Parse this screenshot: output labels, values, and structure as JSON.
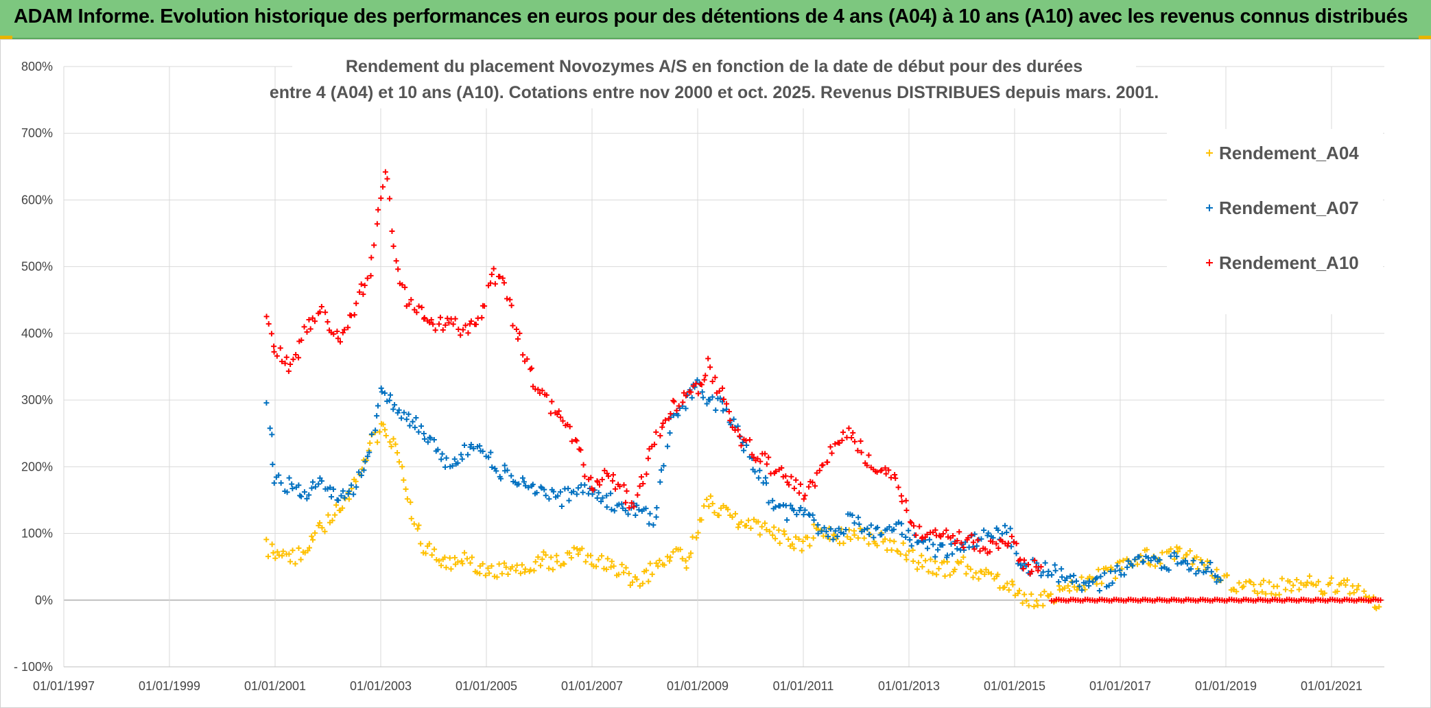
{
  "banner": {
    "title": "ADAM Informe. Evolution historique des performances en euros pour des détentions de 4 ans (A04) à 10 ans (A10) avec les revenus connus distribués"
  },
  "colors": {
    "banner_bg": "#7dc77f",
    "a04": "#ffc000",
    "a07": "#0070c0",
    "a10": "#ff0000",
    "grid": "#d9d9d9"
  },
  "chart_data": {
    "type": "scatter",
    "title_line1": "Rendement du placement Novozymes A/S en fonction de la date de début pour des durées",
    "title_line2": "entre 4 (A04) et 10 ans (A10). Cotations entre nov 2000 et oct. 2025. Revenus DISTRIBUES depuis mars. 2001.",
    "xlim": [
      1997.0,
      2022.0
    ],
    "ylim": [
      -100,
      800
    ],
    "y_ticks": [
      {
        "value": 800,
        "label": "800%"
      },
      {
        "value": 700,
        "label": "700%"
      },
      {
        "value": 600,
        "label": "600%"
      },
      {
        "value": 500,
        "label": "500%"
      },
      {
        "value": 400,
        "label": "400%"
      },
      {
        "value": 300,
        "label": "300%"
      },
      {
        "value": 200,
        "label": "200%"
      },
      {
        "value": 100,
        "label": "100%"
      },
      {
        "value": 0,
        "label": "0%"
      },
      {
        "value": -100,
        "label": "- 100%"
      }
    ],
    "x_ticks": [
      {
        "value": 1997,
        "label": "01/01/1997"
      },
      {
        "value": 1999,
        "label": "01/01/1999"
      },
      {
        "value": 2001,
        "label": "01/01/2001"
      },
      {
        "value": 2003,
        "label": "01/01/2003"
      },
      {
        "value": 2005,
        "label": "01/01/2005"
      },
      {
        "value": 2007,
        "label": "01/01/2007"
      },
      {
        "value": 2009,
        "label": "01/01/2009"
      },
      {
        "value": 2011,
        "label": "01/01/2011"
      },
      {
        "value": 2013,
        "label": "01/01/2013"
      },
      {
        "value": 2015,
        "label": "01/01/2015"
      },
      {
        "value": 2017,
        "label": "01/01/2017"
      },
      {
        "value": 2019,
        "label": "01/01/2019"
      },
      {
        "value": 2021,
        "label": "01/01/2021"
      }
    ],
    "legend_position": "top-right",
    "series": [
      {
        "name": "Rendement_A04",
        "color": "#ffc000",
        "x": [
          2000.85,
          2001.0,
          2001.3,
          2001.6,
          2001.9,
          2002.2,
          2002.5,
          2002.8,
          2003.0,
          2003.2,
          2003.4,
          2003.6,
          2003.8,
          2004.0,
          2004.3,
          2004.6,
          2004.9,
          2005.2,
          2005.5,
          2005.8,
          2006.1,
          2006.4,
          2006.7,
          2007.0,
          2007.3,
          2007.6,
          2007.9,
          2008.2,
          2008.5,
          2008.8,
          2009.0,
          2009.2,
          2009.5,
          2009.8,
          2010.1,
          2010.4,
          2010.7,
          2011.0,
          2011.3,
          2011.6,
          2011.9,
          2012.2,
          2012.5,
          2012.8,
          2013.1,
          2013.4,
          2013.7,
          2014.0,
          2014.3,
          2014.6,
          2014.9,
          2015.1,
          2015.4,
          2015.7,
          2016.0,
          2016.3,
          2016.6,
          2016.9,
          2017.2,
          2017.5,
          2017.8,
          2018.1,
          2018.4,
          2018.7,
          2019.0,
          2019.3,
          2019.6,
          2019.9,
          2020.2,
          2020.5,
          2020.8,
          2021.1,
          2021.4,
          2021.7,
          2021.9
        ],
        "y": [
          80,
          70,
          60,
          80,
          110,
          140,
          170,
          230,
          260,
          240,
          200,
          130,
          80,
          70,
          55,
          60,
          50,
          45,
          50,
          55,
          60,
          55,
          70,
          60,
          55,
          40,
          25,
          50,
          70,
          60,
          100,
          150,
          130,
          120,
          110,
          100,
          90,
          80,
          110,
          90,
          100,
          95,
          90,
          80,
          60,
          50,
          45,
          55,
          40,
          30,
          20,
          5,
          0,
          5,
          15,
          25,
          35,
          45,
          55,
          65,
          60,
          70,
          60,
          50,
          30,
          20,
          20,
          15,
          25,
          30,
          20,
          25,
          15,
          5,
          -10
        ]
      },
      {
        "name": "Rendement_A07",
        "color": "#0070c0",
        "x": [
          2000.85,
          2001.0,
          2001.3,
          2001.6,
          2001.9,
          2002.2,
          2002.5,
          2002.8,
          2003.0,
          2003.2,
          2003.4,
          2003.6,
          2003.8,
          2004.0,
          2004.3,
          2004.6,
          2004.9,
          2005.2,
          2005.5,
          2005.8,
          2006.1,
          2006.4,
          2006.7,
          2007.0,
          2007.3,
          2007.6,
          2007.9,
          2008.2,
          2008.5,
          2008.8,
          2009.0,
          2009.2,
          2009.5,
          2009.8,
          2010.1,
          2010.4,
          2010.7,
          2011.0,
          2011.3,
          2011.6,
          2011.9,
          2012.2,
          2012.5,
          2012.8,
          2013.1,
          2013.4,
          2013.7,
          2014.0,
          2014.3,
          2014.6,
          2014.9,
          2015.1,
          2015.4,
          2015.7,
          2016.0,
          2016.3,
          2016.6,
          2016.9,
          2017.2,
          2017.5,
          2017.8,
          2018.1,
          2018.4,
          2018.7,
          2018.9
        ],
        "y": [
          300,
          180,
          170,
          160,
          180,
          150,
          170,
          220,
          310,
          300,
          280,
          270,
          250,
          230,
          200,
          220,
          230,
          200,
          180,
          170,
          160,
          150,
          170,
          160,
          150,
          140,
          130,
          120,
          280,
          300,
          320,
          300,
          290,
          250,
          200,
          150,
          130,
          140,
          110,
          100,
          120,
          110,
          100,
          110,
          90,
          80,
          70,
          80,
          90,
          100,
          100,
          50,
          50,
          45,
          30,
          20,
          25,
          40,
          55,
          60,
          50,
          65,
          50,
          45,
          30
        ]
      },
      {
        "name": "Rendement_A10",
        "color": "#ff0000",
        "x": [
          2000.85,
          2001.0,
          2001.3,
          2001.6,
          2001.9,
          2002.2,
          2002.5,
          2002.8,
          2003.0,
          2003.1,
          2003.3,
          2003.5,
          2003.8,
          2004.0,
          2004.3,
          2004.6,
          2004.9,
          2005.1,
          2005.3,
          2005.6,
          2005.9,
          2006.2,
          2006.5,
          2006.8,
          2007.0,
          2007.2,
          2007.5,
          2007.8,
          2008.1,
          2008.4,
          2008.7,
          2009.0,
          2009.2,
          2009.5,
          2009.8,
          2010.1,
          2010.4,
          2010.7,
          2011.0,
          2011.3,
          2011.6,
          2011.9,
          2012.2,
          2012.5,
          2012.8,
          2013.1,
          2013.4,
          2013.7,
          2014.0,
          2014.3,
          2014.6,
          2014.9,
          2015.2,
          2015.5
        ],
        "y": [
          420,
          380,
          350,
          410,
          430,
          390,
          440,
          490,
          600,
          650,
          500,
          450,
          430,
          410,
          420,
          400,
          420,
          490,
          480,
          400,
          330,
          290,
          260,
          220,
          160,
          190,
          170,
          140,
          220,
          280,
          300,
          320,
          350,
          300,
          240,
          220,
          200,
          180,
          160,
          190,
          230,
          250,
          210,
          200,
          180,
          100,
          100,
          95,
          90,
          85,
          80,
          90,
          50,
          50
        ]
      }
    ],
    "a10_zero_segment": {
      "x_start": 2015.7,
      "x_end": 2021.95,
      "y": 0
    }
  }
}
